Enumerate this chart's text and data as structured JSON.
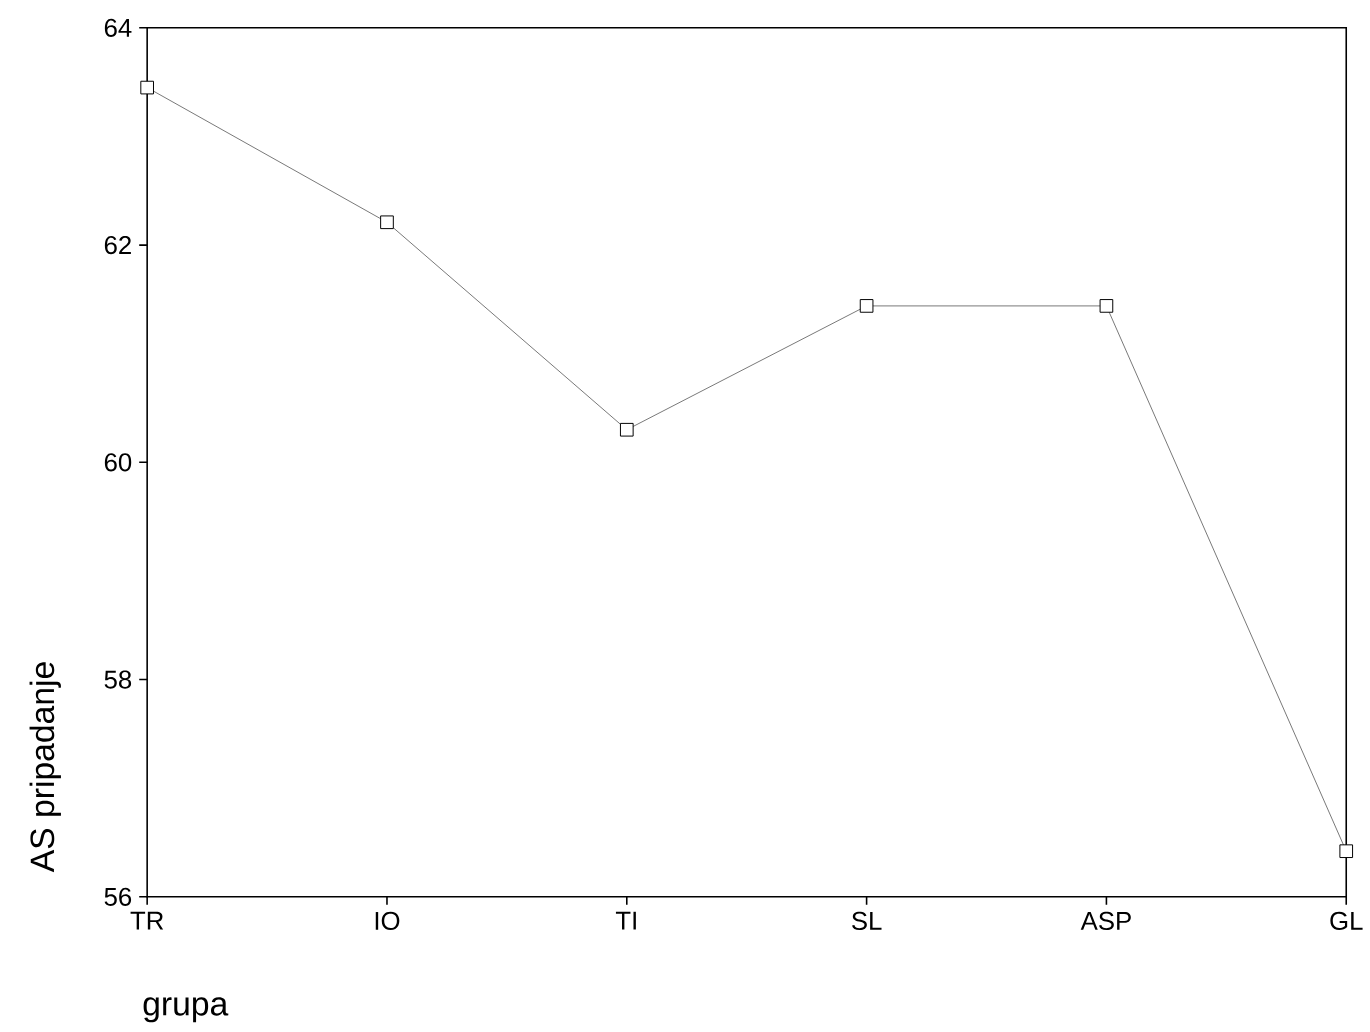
{
  "chart_data": {
    "type": "line",
    "xlabel": "grupa",
    "ylabel": "AS pripadanje",
    "categories": [
      "TR",
      "IO",
      "TI",
      "SL",
      "ASP",
      "GL"
    ],
    "series": [
      {
        "color": "#555555",
        "values": [
          63.45,
          62.21,
          60.3,
          61.44,
          61.44,
          56.42
        ]
      }
    ],
    "ylim": [
      56,
      64
    ],
    "yticks": [
      56,
      58,
      60,
      62,
      64
    ],
    "marker": "square",
    "line_style": "solid"
  }
}
